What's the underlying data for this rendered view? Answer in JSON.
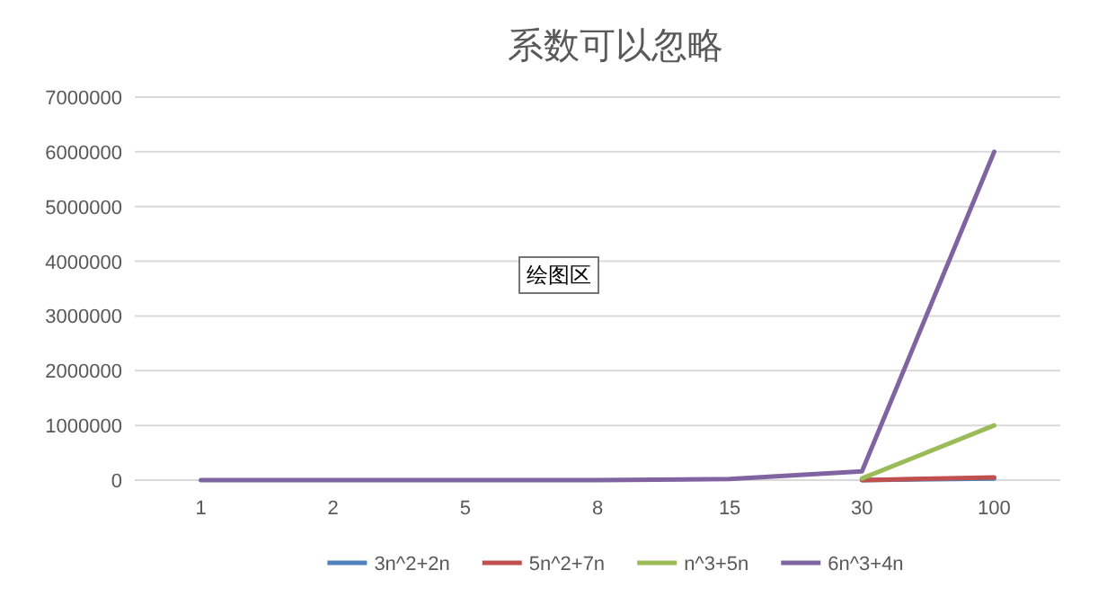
{
  "chart_data": {
    "type": "line",
    "title": "系数可以忽略",
    "categories": [
      "1",
      "2",
      "5",
      "8",
      "15",
      "30",
      "100"
    ],
    "series": [
      {
        "name": "3n^2+2n",
        "color": "#4f81bd",
        "values": [
          null,
          null,
          null,
          null,
          null,
          0,
          30000
        ]
      },
      {
        "name": "5n^2+7n",
        "color": "#c0504d",
        "values": [
          null,
          null,
          null,
          null,
          null,
          0,
          50000
        ]
      },
      {
        "name": "n^3+5n",
        "color": "#9bbb59",
        "values": [
          null,
          null,
          null,
          null,
          null,
          30000,
          1000000
        ]
      },
      {
        "name": "6n^3+4n",
        "color": "#8064a2",
        "values": [
          0,
          0,
          0,
          0,
          20000,
          160000,
          6000000
        ]
      }
    ],
    "ylim": [
      0,
      7000000
    ],
    "yticks": [
      0,
      1000000,
      2000000,
      3000000,
      4000000,
      5000000,
      6000000,
      7000000
    ],
    "grid": "y",
    "legend": "bottom",
    "annotations": [
      "绘图区"
    ]
  }
}
